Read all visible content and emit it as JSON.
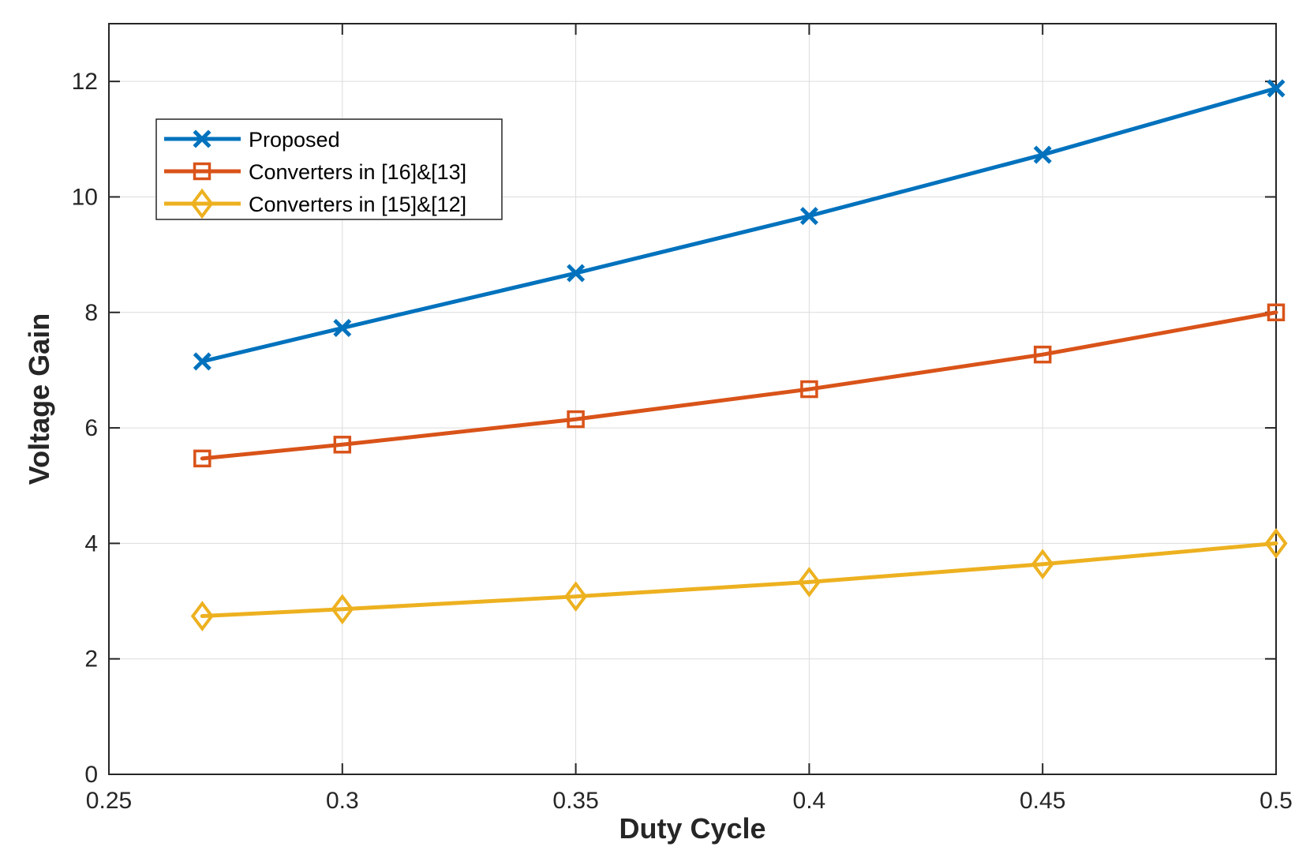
{
  "chart_data": {
    "type": "line",
    "title": "",
    "xlabel": "Duty Cycle",
    "ylabel": "Voltage Gain",
    "xlim": [
      0.25,
      0.5
    ],
    "ylim": [
      0,
      13
    ],
    "xticks": [
      0.25,
      0.3,
      0.35,
      0.4,
      0.45,
      0.5
    ],
    "xtick_labels": [
      "0.25",
      "0.3",
      "0.35",
      "0.4",
      "0.45",
      "0.5"
    ],
    "yticks": [
      0,
      2,
      4,
      6,
      8,
      10,
      12
    ],
    "ytick_labels": [
      "0",
      "2",
      "4",
      "6",
      "8",
      "10",
      "12"
    ],
    "grid": true,
    "legend_position": "top-left",
    "x": [
      0.27,
      0.3,
      0.35,
      0.4,
      0.45,
      0.5
    ],
    "series": [
      {
        "name": "Proposed",
        "marker": "x",
        "color": "#0072BD",
        "values": [
          7.15,
          7.73,
          8.68,
          9.67,
          10.73,
          11.88
        ]
      },
      {
        "name": "Converters in [16]&[13]",
        "marker": "square",
        "color": "#D95319",
        "values": [
          5.47,
          5.71,
          6.15,
          6.67,
          7.27,
          8.0
        ]
      },
      {
        "name": "Converters in [15]&[12]",
        "marker": "diamond",
        "color": "#EDB120",
        "values": [
          2.74,
          2.86,
          3.08,
          3.33,
          3.64,
          4.0
        ]
      }
    ]
  }
}
